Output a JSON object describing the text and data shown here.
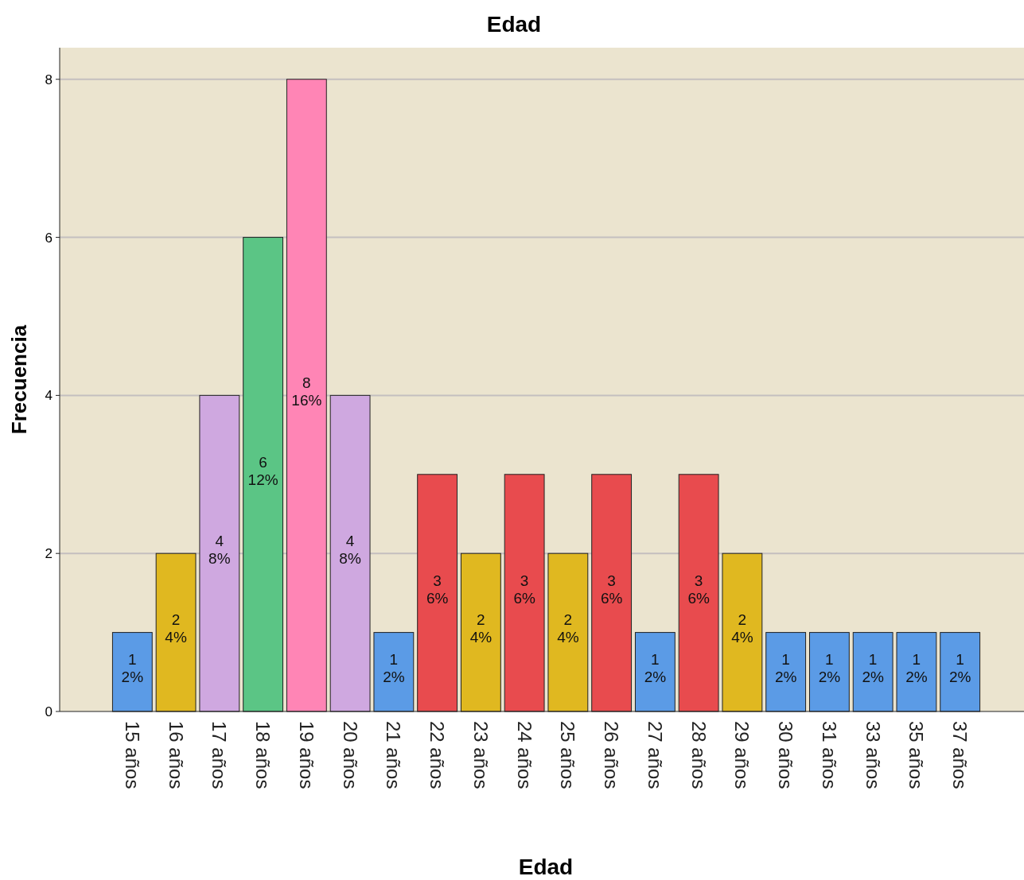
{
  "chart_data": {
    "type": "bar",
    "title": "Edad",
    "xlabel": "Edad",
    "ylabel": "Frecuencia",
    "categories": [
      "15 años",
      "16 años",
      "17 años",
      "18 años",
      "19 años",
      "20 años",
      "21 años",
      "22 años",
      "23 años",
      "24 años",
      "25 años",
      "26 años",
      "27 años",
      "28 años",
      "29 años",
      "30 años",
      "31 años",
      "33 años",
      "35 años",
      "37 años"
    ],
    "values": [
      1,
      2,
      4,
      6,
      8,
      4,
      1,
      3,
      2,
      3,
      2,
      3,
      1,
      3,
      2,
      1,
      1,
      1,
      1,
      1
    ],
    "colors": [
      "#5b9be6",
      "#e0b820",
      "#cfa8e0",
      "#5bc585",
      "#ff85b5",
      "#cfa8e0",
      "#5b9be6",
      "#e84b4e",
      "#e0b820",
      "#e84b4e",
      "#e0b820",
      "#e84b4e",
      "#5b9be6",
      "#e84b4e",
      "#e0b820",
      "#5b9be6",
      "#5b9be6",
      "#5b9be6",
      "#5b9be6",
      "#5b9be6"
    ],
    "value_labels": [
      "1\n2%",
      "2\n4%",
      "4\n8%",
      "6\n12%",
      "8\n16%",
      "4\n8%",
      "1\n2%",
      "3\n6%",
      "2\n4%",
      "3\n6%",
      "2\n4%",
      "3\n6%",
      "1\n2%",
      "3\n6%",
      "2\n4%",
      "1\n2%",
      "1\n2%",
      "1\n2%",
      "1\n2%",
      "1\n2%"
    ],
    "ylim": [
      0,
      8.4
    ],
    "yticks": [
      0,
      2,
      4,
      6,
      8
    ],
    "grid": "y"
  }
}
